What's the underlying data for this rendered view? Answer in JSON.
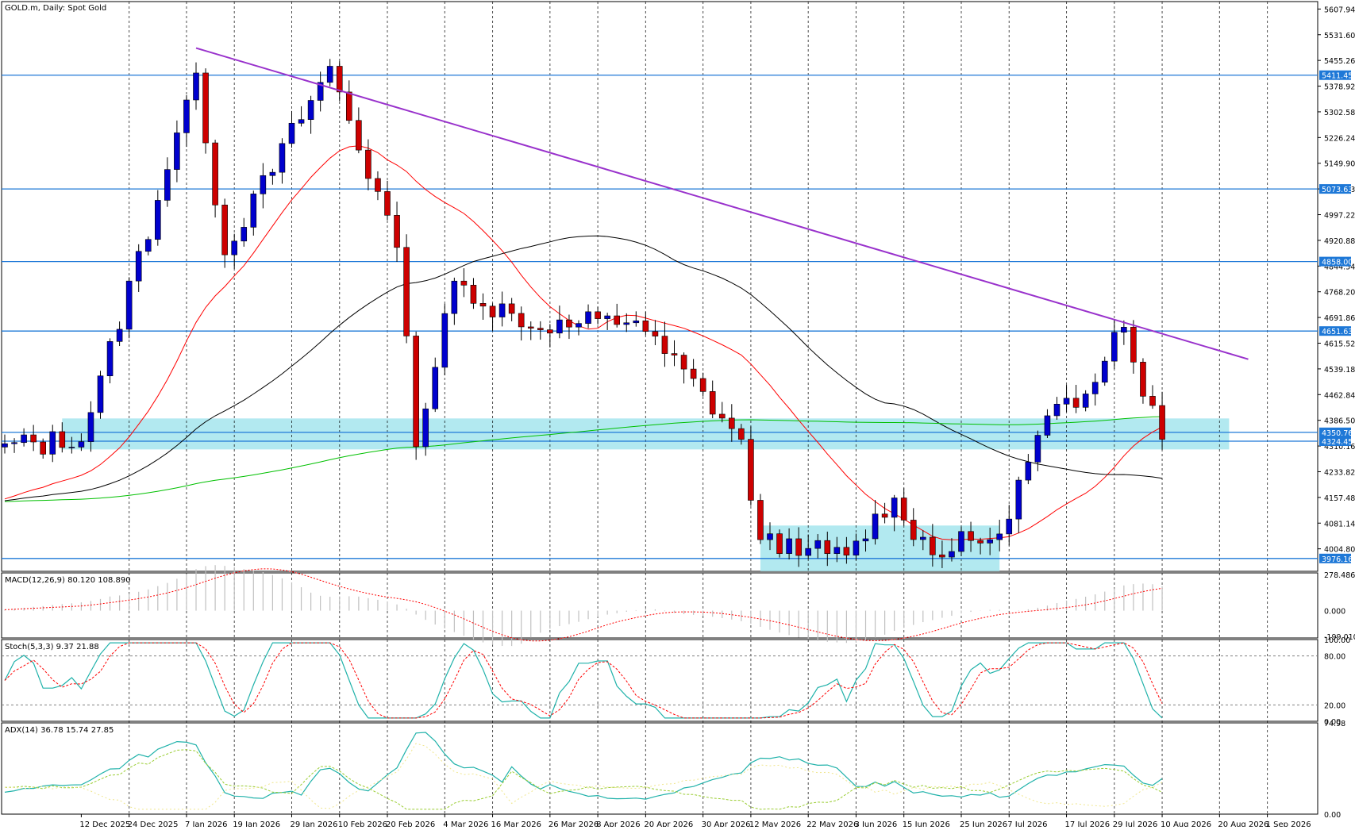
{
  "chart_data": {
    "type": "candlestick",
    "title": "GOLD.m, Daily:  Spot Gold",
    "price_axis_ticks": [
      "5607.94",
      "5531.60",
      "5455.26",
      "5378.92",
      "5302.58",
      "5226.24",
      "5149.90",
      "5073.63",
      "4997.22",
      "4920.88",
      "4844.54",
      "4768.20",
      "4691.86",
      "4615.52",
      "4539.18",
      "4462.84",
      "4386.50",
      "4310.16",
      "4233.82",
      "4157.48",
      "4081.14",
      "4004.80"
    ],
    "price_ylim": [
      3938,
      5630
    ],
    "horizontal_levels": [
      {
        "label": "5411.45",
        "value": 5411.45
      },
      {
        "label": "5073.63",
        "value": 5073.63
      },
      {
        "label": "4858.00",
        "value": 4858.0
      },
      {
        "label": "4651.63",
        "value": 4651.63
      },
      {
        "label": "4350.76",
        "value": 4350.76
      },
      {
        "label": "4324.45",
        "value": 4324.45
      },
      {
        "label": "3976.16",
        "value": 3976.16
      }
    ],
    "date_labels": [
      "12 Dec 2025",
      "24 Dec 2025",
      "7 Jan 2026",
      "19 Jan 2026",
      "29 Jan 2026",
      "10 Feb 2026",
      "20 Feb 2026",
      "4 Mar 2026",
      "16 Mar 2026",
      "26 Mar 2026",
      "8 Apr 2026",
      "20 Apr 2026",
      "30 Apr 2026",
      "12 May 2026",
      "22 May 2026",
      "3 Jun 2026",
      "15 Jun 2026",
      "25 Jun 2026",
      "7 Jul 2026",
      "17 Jul 2026",
      "29 Jul 2026",
      "10 Aug 2026",
      "20 Aug 2026",
      "1 Sep 2026"
    ],
    "zones": [
      {
        "from_bar": 6,
        "to_bar": 128,
        "low": 4300,
        "high": 4392
      },
      {
        "from_bar": 79,
        "to_bar": 104,
        "low": 3938,
        "high": 4074
      }
    ],
    "trendline": {
      "from": [
        20,
        5492
      ],
      "to": [
        130,
        4568
      ]
    },
    "anchor_bars": [
      [
        0,
        4317
      ],
      [
        8,
        4323
      ],
      [
        20,
        5418
      ],
      [
        23,
        4878
      ],
      [
        34,
        5438
      ],
      [
        41,
        4900
      ],
      [
        43,
        4308
      ],
      [
        47,
        4800
      ],
      [
        55,
        4660
      ],
      [
        66,
        4682
      ],
      [
        77,
        4330
      ],
      [
        79,
        4032
      ],
      [
        84,
        4006
      ],
      [
        88,
        3986
      ],
      [
        93,
        4156
      ],
      [
        97,
        3987
      ],
      [
        104,
        4049
      ],
      [
        109,
        4400
      ],
      [
        112,
        4425
      ],
      [
        116,
        4648
      ],
      [
        117,
        4663
      ],
      [
        121,
        4330
      ]
    ],
    "candle_rule": "from bar to bar: up when the next close is higher, down when it is lower",
    "moving_averages": [
      {
        "period": 20,
        "color": "#ff0000"
      },
      {
        "period": 50,
        "color": "#000000"
      },
      {
        "period": 200,
        "color": "#00c000"
      }
    ],
    "candle_colors": {
      "up": "#0000cd",
      "down": "#cd0000"
    },
    "indicators": [
      {
        "name": "MACD(12,26,9) 80.120 108.890",
        "ticks": [
          "278.486",
          "0.000",
          "-199.010"
        ],
        "ylim": [
          -210,
          290
        ],
        "signal_color": "#ff0000",
        "histogram_color": "#c0c0c0"
      },
      {
        "name": "Stoch(5,3,3) 9.37 21.88",
        "ticks": [
          "100.00",
          "80.00",
          "20.00",
          "0.00"
        ],
        "levels": [
          80,
          20
        ],
        "ylim": [
          0,
          100
        ],
        "main_color": "#20b2aa",
        "signal_color": "#ff0000"
      },
      {
        "name": "ADX(14) 36.78 15.74 27.85",
        "ticks": [
          "74.98",
          "0.00"
        ],
        "ylim": [
          0,
          75
        ],
        "adx_color": "#20b2aa",
        "plus_di_color": "#9acd32",
        "minus_di_color": "#f0e68c"
      }
    ]
  }
}
